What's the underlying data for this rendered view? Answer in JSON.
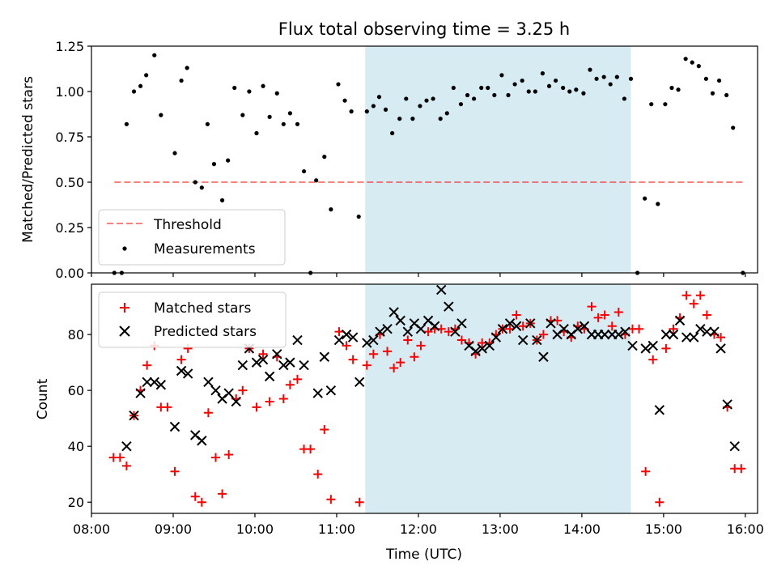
{
  "chart_data": {
    "title": "Flux total observing time = 3.25 h",
    "xlabel": "Time (UTC)",
    "xlim": [
      8.0,
      16.15
    ],
    "xticks": [
      8,
      9,
      10,
      11,
      12,
      13,
      14,
      15,
      16
    ],
    "xtick_labels": [
      "08:00",
      "09:00",
      "10:00",
      "11:00",
      "12:00",
      "13:00",
      "14:00",
      "15:00",
      "16:00"
    ],
    "highlight_span": [
      11.35,
      14.6
    ],
    "highlight_color": "#add8e6",
    "top": {
      "type": "scatter",
      "ylabel": "Matched/Predicted stars",
      "ylim": [
        0,
        1.25
      ],
      "yticks": [
        0.0,
        0.25,
        0.5,
        0.75,
        1.0,
        1.25
      ],
      "ytick_labels": [
        "0.00",
        "0.25",
        "0.50",
        "0.75",
        "1.00",
        "1.25"
      ],
      "threshold": {
        "value": 0.5,
        "x_range": [
          8.28,
          15.97
        ],
        "color": "#ff0000",
        "label": "Threshold"
      },
      "measurement_label": "Measurements",
      "measurements": [
        [
          8.28,
          0.0
        ],
        [
          8.37,
          0.0
        ],
        [
          8.43,
          0.82
        ],
        [
          8.52,
          1.0
        ],
        [
          8.6,
          1.03
        ],
        [
          8.67,
          1.09
        ],
        [
          8.77,
          1.2
        ],
        [
          8.85,
          0.87
        ],
        [
          9.02,
          0.66
        ],
        [
          9.1,
          1.06
        ],
        [
          9.17,
          1.13
        ],
        [
          9.27,
          0.5
        ],
        [
          9.35,
          0.47
        ],
        [
          9.42,
          0.82
        ],
        [
          9.5,
          0.6
        ],
        [
          9.6,
          0.4
        ],
        [
          9.67,
          0.62
        ],
        [
          9.75,
          1.02
        ],
        [
          9.85,
          0.87
        ],
        [
          9.93,
          1.0
        ],
        [
          10.02,
          0.77
        ],
        [
          10.1,
          1.03
        ],
        [
          10.18,
          0.86
        ],
        [
          10.27,
          0.99
        ],
        [
          10.35,
          0.82
        ],
        [
          10.43,
          0.88
        ],
        [
          10.52,
          0.82
        ],
        [
          10.6,
          0.56
        ],
        [
          10.68,
          0.0
        ],
        [
          10.75,
          0.51
        ],
        [
          10.85,
          0.64
        ],
        [
          10.93,
          0.35
        ],
        [
          11.02,
          1.04
        ],
        [
          11.1,
          0.95
        ],
        [
          11.18,
          0.89
        ],
        [
          11.27,
          0.31
        ],
        [
          11.37,
          0.89
        ],
        [
          11.45,
          0.92
        ],
        [
          11.52,
          0.97
        ],
        [
          11.6,
          0.9
        ],
        [
          11.68,
          0.77
        ],
        [
          11.77,
          0.85
        ],
        [
          11.85,
          0.96
        ],
        [
          11.93,
          0.85
        ],
        [
          12.02,
          0.92
        ],
        [
          12.1,
          0.95
        ],
        [
          12.18,
          0.96
        ],
        [
          12.27,
          0.85
        ],
        [
          12.35,
          0.88
        ],
        [
          12.43,
          1.02
        ],
        [
          12.52,
          0.93
        ],
        [
          12.6,
          0.98
        ],
        [
          12.68,
          0.96
        ],
        [
          12.77,
          1.02
        ],
        [
          12.85,
          1.02
        ],
        [
          12.93,
          0.98
        ],
        [
          13.02,
          1.09
        ],
        [
          13.1,
          0.98
        ],
        [
          13.18,
          1.04
        ],
        [
          13.27,
          1.06
        ],
        [
          13.35,
          1.0
        ],
        [
          13.43,
          1.0
        ],
        [
          13.52,
          1.1
        ],
        [
          13.6,
          1.03
        ],
        [
          13.68,
          1.06
        ],
        [
          13.77,
          1.02
        ],
        [
          13.85,
          1.0
        ],
        [
          13.93,
          1.01
        ],
        [
          14.02,
          0.99
        ],
        [
          14.1,
          1.12
        ],
        [
          14.18,
          1.07
        ],
        [
          14.27,
          1.08
        ],
        [
          14.35,
          1.04
        ],
        [
          14.43,
          1.08
        ],
        [
          14.52,
          0.96
        ],
        [
          14.6,
          1.07
        ],
        [
          14.68,
          0.0
        ],
        [
          14.77,
          0.41
        ],
        [
          14.85,
          0.93
        ],
        [
          14.93,
          0.38
        ],
        [
          15.02,
          0.93
        ],
        [
          15.1,
          1.02
        ],
        [
          15.18,
          1.01
        ],
        [
          15.27,
          1.18
        ],
        [
          15.35,
          1.16
        ],
        [
          15.43,
          1.14
        ],
        [
          15.52,
          1.07
        ],
        [
          15.6,
          0.99
        ],
        [
          15.68,
          1.06
        ],
        [
          15.77,
          0.98
        ],
        [
          15.85,
          0.8
        ],
        [
          15.97,
          0.0
        ]
      ]
    },
    "bottom": {
      "type": "scatter",
      "ylabel": "Count",
      "ylim": [
        16,
        98
      ],
      "yticks": [
        20,
        40,
        60,
        80
      ],
      "ytick_labels": [
        "20",
        "40",
        "60",
        "80"
      ],
      "series": [
        {
          "name": "Matched stars",
          "marker": "plus",
          "color": "#ff0000",
          "points": [
            [
              8.27,
              36
            ],
            [
              8.35,
              36
            ],
            [
              8.43,
              33
            ],
            [
              8.52,
              51
            ],
            [
              8.6,
              60
            ],
            [
              8.68,
              69
            ],
            [
              8.77,
              76
            ],
            [
              8.85,
              54
            ],
            [
              8.93,
              54
            ],
            [
              9.02,
              31
            ],
            [
              9.1,
              71
            ],
            [
              9.18,
              75
            ],
            [
              9.27,
              22
            ],
            [
              9.35,
              20
            ],
            [
              9.43,
              52
            ],
            [
              9.52,
              36
            ],
            [
              9.6,
              23
            ],
            [
              9.68,
              37
            ],
            [
              9.77,
              57
            ],
            [
              9.85,
              60
            ],
            [
              9.93,
              75
            ],
            [
              10.02,
              54
            ],
            [
              10.1,
              73
            ],
            [
              10.18,
              56
            ],
            [
              10.27,
              72
            ],
            [
              10.35,
              57
            ],
            [
              10.43,
              62
            ],
            [
              10.52,
              64
            ],
            [
              10.6,
              39
            ],
            [
              10.68,
              39
            ],
            [
              10.77,
              30
            ],
            [
              10.85,
              46
            ],
            [
              10.93,
              21
            ],
            [
              11.03,
              81
            ],
            [
              11.12,
              76
            ],
            [
              11.2,
              71
            ],
            [
              11.28,
              20
            ],
            [
              11.37,
              69
            ],
            [
              11.45,
              73
            ],
            [
              11.53,
              80
            ],
            [
              11.62,
              74
            ],
            [
              11.7,
              68
            ],
            [
              11.78,
              70
            ],
            [
              11.87,
              78
            ],
            [
              11.95,
              72
            ],
            [
              12.03,
              76
            ],
            [
              12.12,
              81
            ],
            [
              12.2,
              82
            ],
            [
              12.28,
              82
            ],
            [
              12.37,
              81
            ],
            [
              12.45,
              82
            ],
            [
              12.53,
              78
            ],
            [
              12.62,
              77
            ],
            [
              12.7,
              73
            ],
            [
              12.78,
              77
            ],
            [
              12.87,
              77
            ],
            [
              12.95,
              80
            ],
            [
              13.03,
              82
            ],
            [
              13.12,
              82
            ],
            [
              13.2,
              87
            ],
            [
              13.28,
              83
            ],
            [
              13.37,
              84
            ],
            [
              13.45,
              78
            ],
            [
              13.53,
              80
            ],
            [
              13.62,
              85
            ],
            [
              13.7,
              85
            ],
            [
              13.78,
              81
            ],
            [
              13.87,
              79
            ],
            [
              13.95,
              83
            ],
            [
              14.03,
              82
            ],
            [
              14.12,
              90
            ],
            [
              14.2,
              86
            ],
            [
              14.28,
              87
            ],
            [
              14.37,
              83
            ],
            [
              14.45,
              88
            ],
            [
              14.53,
              80
            ],
            [
              14.62,
              82
            ],
            [
              14.7,
              82
            ],
            [
              14.78,
              31
            ],
            [
              14.87,
              71
            ],
            [
              14.95,
              20
            ],
            [
              15.03,
              75
            ],
            [
              15.12,
              82
            ],
            [
              15.2,
              86
            ],
            [
              15.28,
              94
            ],
            [
              15.37,
              91
            ],
            [
              15.45,
              94
            ],
            [
              15.53,
              87
            ],
            [
              15.62,
              80
            ],
            [
              15.7,
              79
            ],
            [
              15.78,
              54
            ],
            [
              15.87,
              32
            ],
            [
              15.95,
              32
            ]
          ]
        },
        {
          "name": "Predicted stars",
          "marker": "x",
          "color": "#000000",
          "points": [
            [
              8.43,
              40
            ],
            [
              8.52,
              51
            ],
            [
              8.6,
              59
            ],
            [
              8.68,
              63
            ],
            [
              8.77,
              63
            ],
            [
              8.85,
              62
            ],
            [
              9.02,
              47
            ],
            [
              9.1,
              67
            ],
            [
              9.18,
              66
            ],
            [
              9.27,
              44
            ],
            [
              9.35,
              42
            ],
            [
              9.43,
              63
            ],
            [
              9.52,
              60
            ],
            [
              9.6,
              57
            ],
            [
              9.68,
              59
            ],
            [
              9.77,
              56
            ],
            [
              9.85,
              69
            ],
            [
              9.93,
              75
            ],
            [
              10.02,
              70
            ],
            [
              10.1,
              71
            ],
            [
              10.18,
              65
            ],
            [
              10.27,
              73
            ],
            [
              10.35,
              69
            ],
            [
              10.43,
              70
            ],
            [
              10.52,
              78
            ],
            [
              10.6,
              69
            ],
            [
              10.77,
              59
            ],
            [
              10.85,
              72
            ],
            [
              10.93,
              60
            ],
            [
              11.03,
              78
            ],
            [
              11.12,
              80
            ],
            [
              11.2,
              79
            ],
            [
              11.28,
              63
            ],
            [
              11.37,
              77
            ],
            [
              11.45,
              78
            ],
            [
              11.53,
              81
            ],
            [
              11.62,
              82
            ],
            [
              11.7,
              88
            ],
            [
              11.78,
              85
            ],
            [
              11.87,
              81
            ],
            [
              11.95,
              84
            ],
            [
              12.03,
              82
            ],
            [
              12.12,
              85
            ],
            [
              12.2,
              83
            ],
            [
              12.28,
              96
            ],
            [
              12.37,
              90
            ],
            [
              12.45,
              81
            ],
            [
              12.53,
              84
            ],
            [
              12.62,
              76
            ],
            [
              12.7,
              74
            ],
            [
              12.78,
              75
            ],
            [
              12.87,
              76
            ],
            [
              12.95,
              79
            ],
            [
              13.03,
              82
            ],
            [
              13.12,
              84
            ],
            [
              13.2,
              83
            ],
            [
              13.28,
              78
            ],
            [
              13.37,
              84
            ],
            [
              13.45,
              78
            ],
            [
              13.53,
              72
            ],
            [
              13.62,
              84
            ],
            [
              13.7,
              80
            ],
            [
              13.78,
              82
            ],
            [
              13.87,
              80
            ],
            [
              13.95,
              82
            ],
            [
              14.03,
              83
            ],
            [
              14.12,
              80
            ],
            [
              14.2,
              80
            ],
            [
              14.28,
              80
            ],
            [
              14.37,
              80
            ],
            [
              14.45,
              80
            ],
            [
              14.53,
              81
            ],
            [
              14.62,
              76
            ],
            [
              14.78,
              75
            ],
            [
              14.87,
              76
            ],
            [
              14.95,
              53
            ],
            [
              15.03,
              80
            ],
            [
              15.12,
              80
            ],
            [
              15.2,
              85
            ],
            [
              15.28,
              79
            ],
            [
              15.37,
              79
            ],
            [
              15.45,
              82
            ],
            [
              15.53,
              81
            ],
            [
              15.62,
              81
            ],
            [
              15.7,
              75
            ],
            [
              15.78,
              55
            ],
            [
              15.87,
              40
            ]
          ]
        }
      ]
    }
  }
}
